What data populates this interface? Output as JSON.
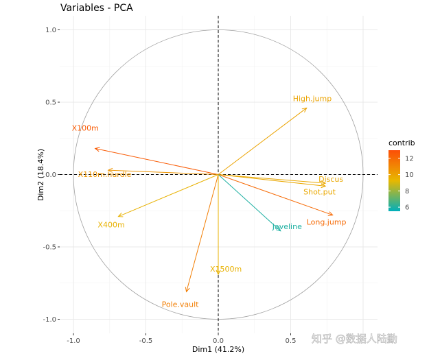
{
  "chart_data": {
    "type": "pca-variable-correlation-circle",
    "title": "Variables - PCA",
    "xlabel": "Dim1 (41.2%)",
    "ylabel": "Dim2 (18.4%)",
    "xlim": [
      -1.05,
      1.05
    ],
    "ylim": [
      -1.05,
      1.05
    ],
    "xticks": [
      -1.0,
      -0.5,
      0.0,
      0.5
    ],
    "xtick_labels": [
      "-1.0",
      "-0.5",
      "0.0",
      "0.5"
    ],
    "yticks": [
      -1.0,
      -0.5,
      0.0,
      0.5,
      1.0
    ],
    "ytick_labels": [
      "-1.0",
      "-0.5",
      "0.0",
      "0.5",
      "1.0"
    ],
    "grid": true,
    "unit_circle": true,
    "legend": {
      "title": "contrib",
      "placement": "right",
      "ticks": [
        6,
        8,
        10,
        12
      ],
      "tick_labels": [
        "6",
        "8",
        "10",
        "12"
      ],
      "range": [
        5.5,
        13
      ],
      "gradient_colors": [
        "#00AFBB",
        "#E7B800",
        "#FC4E07"
      ]
    },
    "variables": [
      {
        "name": "X100m",
        "x": -0.85,
        "y": 0.18,
        "contrib": 12.5
      },
      {
        "name": "X110m.hurdle",
        "x": -0.76,
        "y": 0.03,
        "contrib": 10.5
      },
      {
        "name": "X400m",
        "x": -0.69,
        "y": -0.29,
        "contrib": 9.5
      },
      {
        "name": "High.jump",
        "x": 0.61,
        "y": 0.46,
        "contrib": 10.0
      },
      {
        "name": "Discus",
        "x": 0.74,
        "y": -0.06,
        "contrib": 9.8
      },
      {
        "name": "Shot.put",
        "x": 0.74,
        "y": -0.08,
        "contrib": 9.8
      },
      {
        "name": "Long.jump",
        "x": 0.79,
        "y": -0.28,
        "contrib": 12.0
      },
      {
        "name": "Javeline",
        "x": 0.43,
        "y": -0.39,
        "contrib": 6.0
      },
      {
        "name": "Pole.vault",
        "x": -0.22,
        "y": -0.81,
        "contrib": 11.3
      },
      {
        "name": "X1500m",
        "x": 0.0,
        "y": -0.69,
        "contrib": 9.5
      }
    ]
  },
  "watermark": "知乎 @数据人陆勤"
}
